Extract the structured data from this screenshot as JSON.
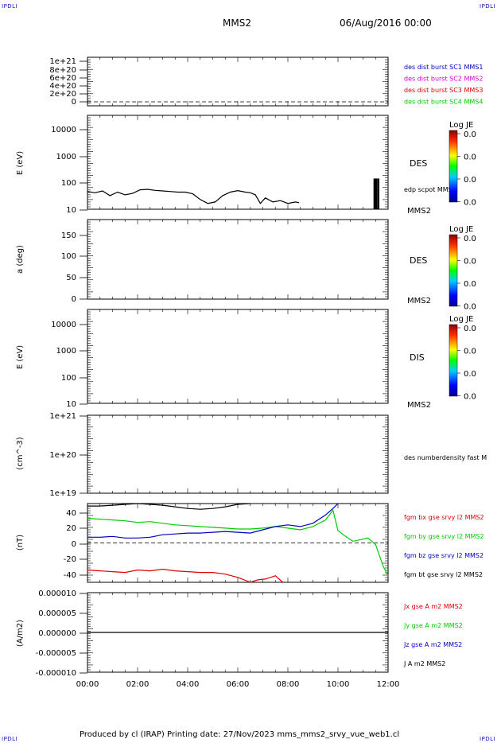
{
  "header": {
    "corner_tl": "IPDLI",
    "corner_tr": "IPDLI",
    "corner_bl": "IPDLI",
    "corner_br": "IPDLI",
    "spacecraft": "MMS2",
    "datetime": "06/Aug/2016 00:00"
  },
  "footer": {
    "text": "Produced by cl (IRAP)   Printing date: 27/Nov/2023   mms_mms2_srvy_vue_web1.cl"
  },
  "colors": {
    "black": "#000000",
    "red": "#e00000",
    "green": "#00cc00",
    "blue": "#0000c0",
    "magenta": "#d000d0"
  },
  "time_axis": {
    "ticks": [
      "00:00",
      "02:00",
      "04:00",
      "06:00",
      "08:00",
      "10:00",
      "12:00"
    ],
    "range_hours": [
      0,
      12
    ]
  },
  "chart_data": [
    {
      "type": "line",
      "panel": "orbit",
      "yticks": [
        "1e+21",
        "8e+20",
        "6e+20",
        "4e+20",
        "2e+20",
        "0"
      ],
      "ylim": [
        0,
        1e+21
      ],
      "legend": [
        {
          "name": "des dist burst SC1 MMS1",
          "color": "#0000c0"
        },
        {
          "name": "des dist burst SC2 MMS2",
          "color": "#d000d0"
        },
        {
          "name": "des dist burst SC3 MMS3",
          "color": "#e00000"
        },
        {
          "name": "des dist burst SC4 MMS4",
          "color": "#00cc00"
        }
      ],
      "zero_line": true
    },
    {
      "type": "line",
      "panel": "des-energy",
      "ylabel": "E (eV)",
      "yscale": "log",
      "ylim": [
        10,
        20000
      ],
      "yticks": [
        "10000",
        "1000",
        "100",
        "10"
      ],
      "right_label": "DES",
      "trace_label": "edp scpot MMS2",
      "bottom_label": "MMS2",
      "colorbar": {
        "title": "Log JE",
        "ticks": [
          "0.0",
          "0.0",
          "0.0",
          "0.0"
        ]
      },
      "series": [
        {
          "name": "edp scpot MMS2",
          "x": [
            0.0,
            0.3,
            0.6,
            0.9,
            1.2,
            1.5,
            1.8,
            2.1,
            2.4,
            2.7,
            3.0,
            3.3,
            3.6,
            3.9,
            4.2,
            4.5,
            4.8,
            5.1,
            5.4,
            5.7,
            6.0,
            6.3,
            6.5,
            6.7,
            6.9,
            7.1,
            7.4,
            7.7,
            8.0,
            8.3,
            8.45
          ],
          "y": [
            42,
            38,
            44,
            30,
            40,
            32,
            36,
            48,
            50,
            46,
            44,
            42,
            40,
            40,
            35,
            22,
            16,
            18,
            30,
            40,
            45,
            40,
            38,
            32,
            16,
            25,
            18,
            20,
            16,
            18,
            17
          ]
        }
      ],
      "bars_hours": [
        11.45,
        11.5,
        11.55,
        11.62
      ],
      "bars_value": 120
    },
    {
      "type": "line",
      "panel": "des-pitch",
      "ylabel": "a (deg)",
      "ylim": [
        0,
        180
      ],
      "yticks": [
        "150",
        "100",
        "50",
        "0"
      ],
      "right_label": "DES",
      "bottom_label": "MMS2",
      "colorbar": {
        "title": "Log JE",
        "ticks": [
          "0.0",
          "0.0",
          "0.0",
          "0.0"
        ]
      }
    },
    {
      "type": "line",
      "panel": "dis-energy",
      "ylabel": "E (eV)",
      "yscale": "log",
      "ylim": [
        10,
        20000
      ],
      "yticks": [
        "10000",
        "1000",
        "100",
        "10"
      ],
      "right_label": "DIS",
      "bottom_label": "MMS2",
      "colorbar": {
        "title": "Log JE",
        "ticks": [
          "0.0",
          "0.0",
          "0.0",
          "0.0"
        ]
      }
    },
    {
      "type": "line",
      "panel": "density",
      "ylabel": "(cm^-3)",
      "yscale": "log",
      "yticks": [
        "1e+21",
        "1e+20",
        "1e+19"
      ],
      "legend": [
        {
          "name": "des numberdensity fast M",
          "color": "#000000"
        }
      ]
    },
    {
      "type": "line",
      "panel": "fgm",
      "ylabel": "(nT)",
      "ylim": [
        -48,
        48
      ],
      "yticks": [
        "40",
        "20",
        "0",
        "-20",
        "-40"
      ],
      "zero_line": true,
      "series": [
        {
          "name": "fgm bt gse srvy l2 MMS2",
          "color": "#000000",
          "x": [
            0,
            0.5,
            1.0,
            1.5,
            2.0,
            2.5,
            3.0,
            3.5,
            4.0,
            4.5,
            5.0,
            5.5,
            6.0,
            6.5
          ],
          "y": [
            45,
            45,
            46,
            47,
            48,
            47,
            46,
            44,
            42,
            41,
            42,
            44,
            47,
            50
          ]
        },
        {
          "name": "fgm by gse srvy l2 MMS2",
          "color": "#00cc00",
          "x": [
            0,
            0.5,
            1.0,
            1.5,
            2.0,
            2.5,
            3.0,
            3.5,
            4.0,
            4.5,
            5.0,
            5.5,
            6.0,
            6.5,
            7.0,
            7.5,
            8.0,
            8.5,
            9.0,
            9.5,
            9.8,
            10.0,
            10.3,
            10.6,
            10.9,
            11.2,
            11.5,
            11.8,
            12.0
          ],
          "y": [
            30,
            29,
            28,
            27,
            25,
            26,
            24,
            22,
            21,
            20,
            19,
            18,
            17,
            17,
            18,
            20,
            18,
            16,
            20,
            28,
            40,
            15,
            8,
            2,
            4,
            6,
            -2,
            -28,
            -40
          ]
        },
        {
          "name": "fgm bz gse srvy l2 MMS2",
          "color": "#0000c0",
          "x": [
            0,
            0.5,
            1.0,
            1.5,
            2.0,
            2.5,
            3.0,
            3.5,
            4.0,
            4.5,
            5.0,
            5.5,
            6.0,
            6.5,
            7.0,
            7.5,
            8.0,
            8.5,
            9.0,
            9.5,
            9.8,
            10.0
          ],
          "y": [
            7,
            7,
            8,
            6,
            6,
            7,
            10,
            11,
            12,
            12,
            13,
            14,
            13,
            12,
            16,
            20,
            22,
            20,
            24,
            34,
            42,
            48
          ]
        },
        {
          "name": "fgm bx gse srvy l2 MMS2",
          "color": "#e00000",
          "x": [
            0,
            0.5,
            1.0,
            1.5,
            2.0,
            2.5,
            3.0,
            3.5,
            4.0,
            4.5,
            5.0,
            5.5,
            6.0,
            6.5,
            6.8,
            7.1,
            7.5,
            7.8
          ],
          "y": [
            -33,
            -34,
            -35,
            -36,
            -33,
            -34,
            -32,
            -34,
            -35,
            -36,
            -36,
            -38,
            -42,
            -48,
            -45,
            -44,
            -40,
            -48
          ]
        }
      ],
      "legend": [
        {
          "name": "fgm bx gse srvy l2 MMS2",
          "color": "#e00000"
        },
        {
          "name": "fgm by gse srvy l2 MMS2",
          "color": "#00cc00"
        },
        {
          "name": "fgm bz gse srvy l2 MMS2",
          "color": "#0000c0"
        },
        {
          "name": "fgm bt gse srvy l2 MMS2",
          "color": "#000000"
        }
      ]
    },
    {
      "type": "line",
      "panel": "current",
      "ylabel": "(A/m2)",
      "ylim": [
        -1e-05,
        1e-05
      ],
      "yticks": [
        "0.000010",
        "0.000005",
        "0.000000",
        "-0.000005",
        "-0.000010"
      ],
      "series": [
        {
          "name": "J A m2 MMS2",
          "color": "#000000",
          "x": [
            0,
            12
          ],
          "y": [
            0,
            0
          ]
        }
      ],
      "legend": [
        {
          "name": "Jx gse A m2 MMS2",
          "color": "#e00000"
        },
        {
          "name": "Jy gse A m2 MMS2",
          "color": "#00cc00"
        },
        {
          "name": "Jz gse A m2 MMS2",
          "color": "#0000c0"
        },
        {
          "name": "J A m2 MMS2",
          "color": "#000000"
        }
      ]
    }
  ]
}
